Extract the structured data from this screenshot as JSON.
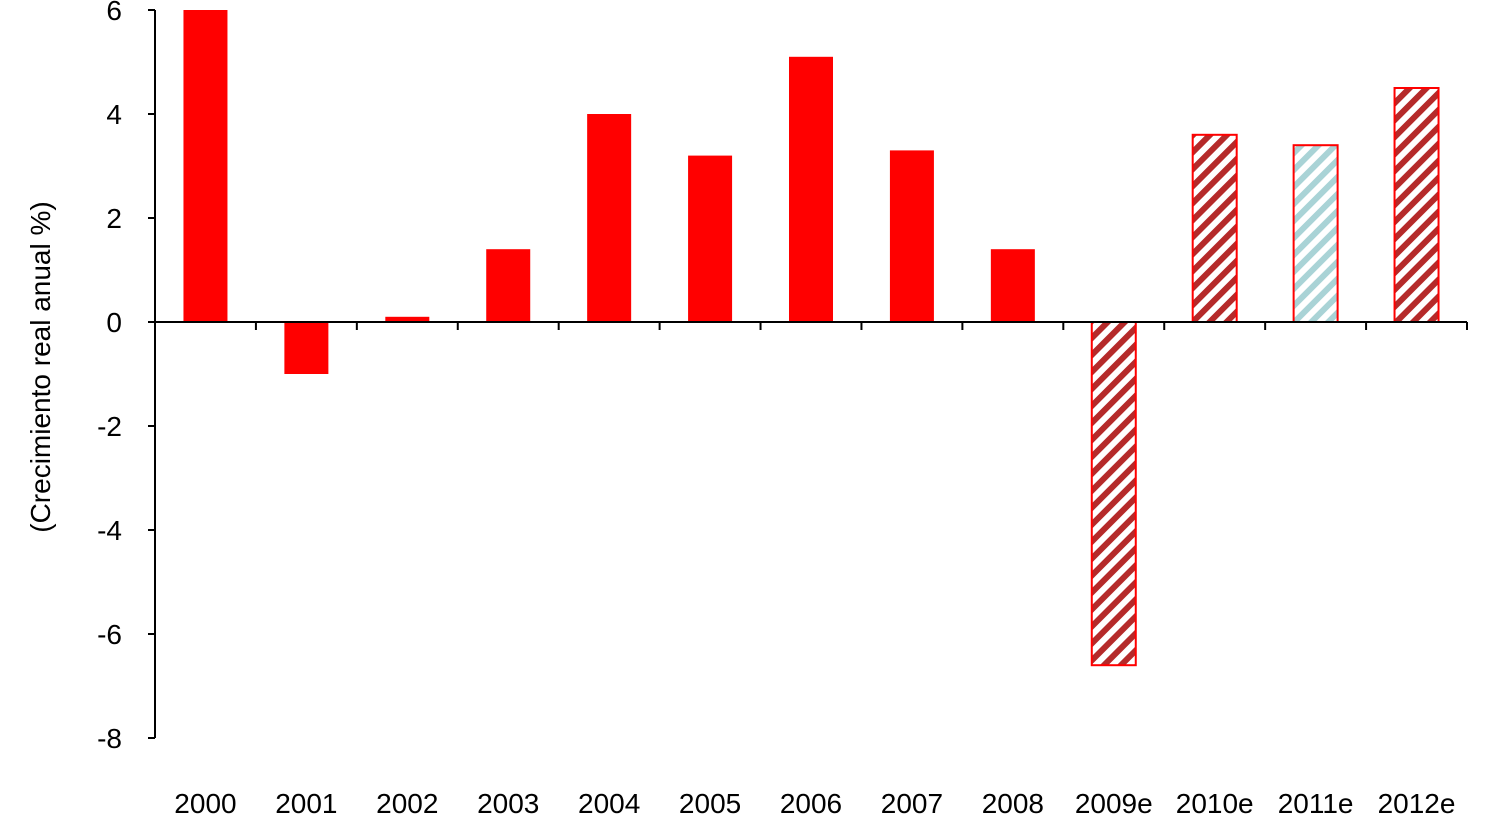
{
  "chart_data": {
    "type": "bar",
    "title": "",
    "xlabel": "",
    "ylabel": "(Crecimiento real anual %)",
    "ylim": [
      -8,
      6
    ],
    "yticks": [
      6,
      4,
      2,
      0,
      -2,
      -4,
      -6,
      -8
    ],
    "grid": false,
    "legend": "none",
    "categories": [
      "2000",
      "2001",
      "2002",
      "2003",
      "2004",
      "2005",
      "2006",
      "2007",
      "2008",
      "2009e",
      "2010e",
      "2011e",
      "2012e"
    ],
    "values": [
      6.0,
      -1.0,
      0.1,
      1.4,
      4.0,
      3.2,
      5.1,
      3.3,
      1.4,
      -6.6,
      3.6,
      3.4,
      4.5
    ],
    "bar_styles": [
      "solid",
      "solid",
      "solid",
      "solid",
      "solid",
      "solid",
      "solid",
      "solid",
      "solid",
      "hatched",
      "hatched",
      "hatched-light",
      "hatched"
    ],
    "colors": {
      "bar": "#ff0000",
      "hatch_dark": "#b52a2a",
      "hatch_light": "#a9d3d6",
      "axis": "#000000"
    }
  }
}
